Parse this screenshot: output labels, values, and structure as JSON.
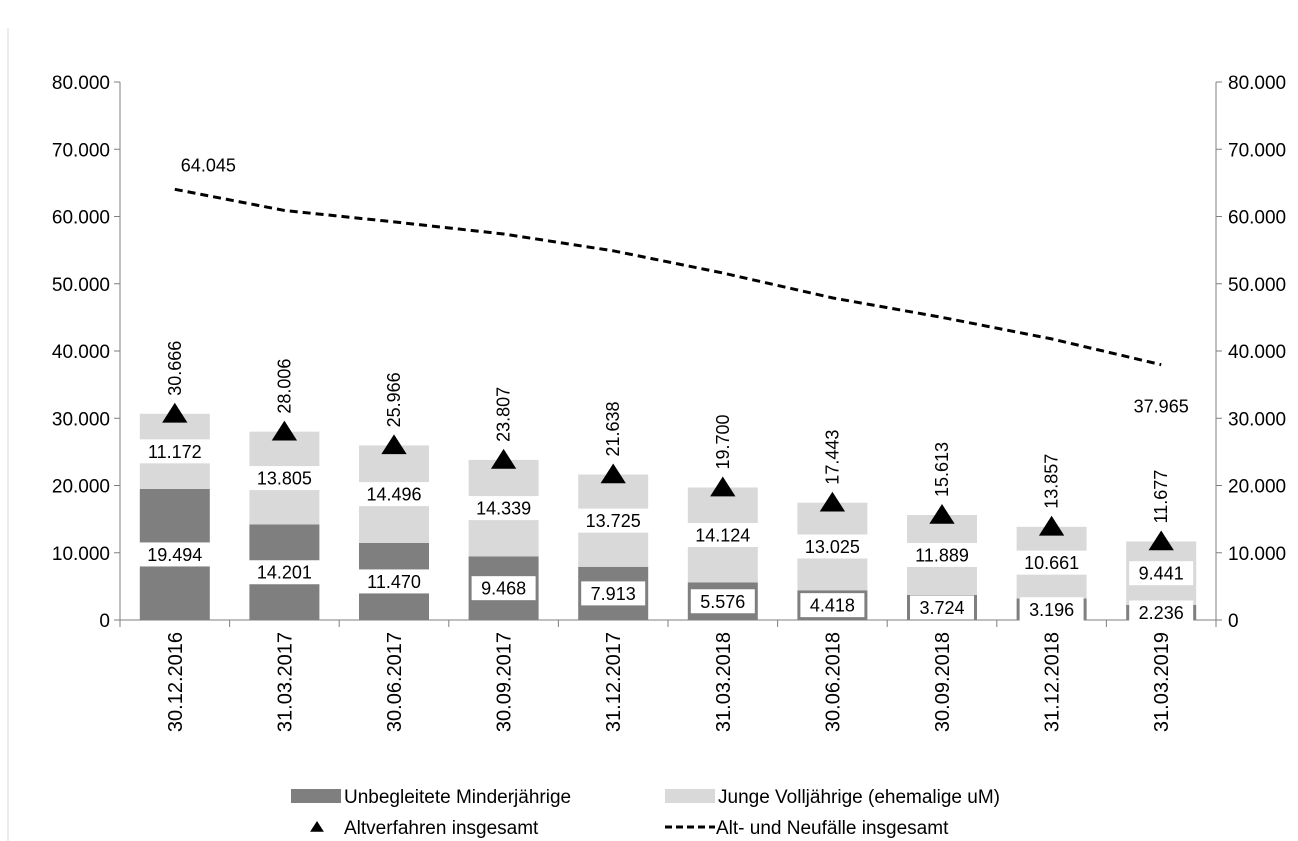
{
  "chart_data": {
    "type": "bar",
    "stacked": true,
    "categories": [
      "30.12.2016",
      "31.03.2017",
      "30.06.2017",
      "30.09.2017",
      "31.12.2017",
      "31.03.2018",
      "30.06.2018",
      "30.09.2018",
      "31.12.2018",
      "31.03.2019"
    ],
    "series": [
      {
        "name": "Unbegleitete Minderjährige",
        "kind": "bar",
        "color": "#7f7f7f",
        "values": [
          19494,
          14201,
          11470,
          9468,
          7913,
          5576,
          4418,
          3724,
          3196,
          2236
        ],
        "labels": [
          "19.494",
          "14.201",
          "11.470",
          "9.468",
          "7.913",
          "5.576",
          "4.418",
          "3.724",
          "3.196",
          "2.236"
        ]
      },
      {
        "name": "Junge Volljährige (ehemalige uM)",
        "kind": "bar",
        "color": "#d9d9d9",
        "values": [
          11172,
          13805,
          14496,
          14339,
          13725,
          14124,
          13025,
          11889,
          10661,
          9441
        ],
        "labels": [
          "11.172",
          "13.805",
          "14.496",
          "14.339",
          "13.725",
          "14.124",
          "13.025",
          "11.889",
          "10.661",
          "9.441"
        ]
      },
      {
        "name": "Altverfahren insgesamt",
        "kind": "marker",
        "marker": "triangle",
        "color": "#000000",
        "values": [
          30666,
          28006,
          25966,
          23807,
          21638,
          19700,
          17443,
          15613,
          13857,
          11677
        ],
        "labels": [
          "30.666",
          "28.006",
          "25.966",
          "23.807",
          "21.638",
          "19.700",
          "17.443",
          "15.613",
          "13.857",
          "11.677"
        ]
      },
      {
        "name": "Alt- und Neufälle insgesamt",
        "kind": "line",
        "dash": true,
        "color": "#000000",
        "values": [
          64045,
          60900,
          59200,
          57400,
          54900,
          51600,
          47900,
          45000,
          41800,
          37965
        ],
        "end_labels": [
          "64.045",
          "37.965"
        ]
      }
    ],
    "y_ticks": [
      "0",
      "10.000",
      "20.000",
      "30.000",
      "40.000",
      "50.000",
      "60.000",
      "70.000",
      "80.000"
    ],
    "ylim": [
      0,
      80000
    ],
    "secondary_axis": true,
    "grid": false,
    "legend_position": "bottom",
    "title": "",
    "xlabel": "",
    "ylabel": ""
  }
}
